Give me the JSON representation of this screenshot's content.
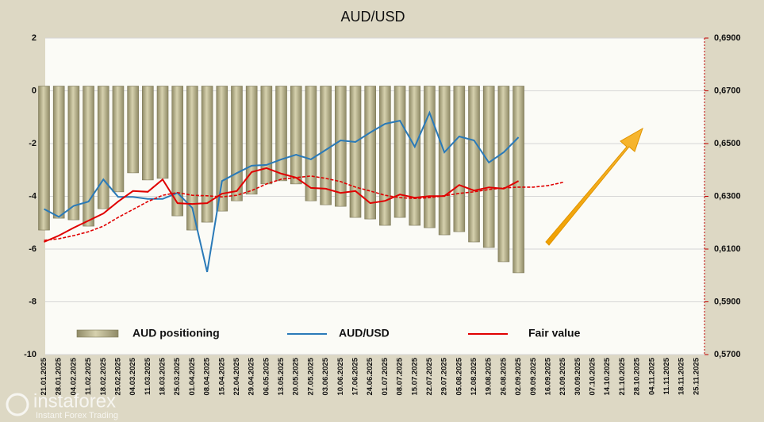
{
  "chart_data": {
    "type": "bar_line",
    "title": "AUD/USD",
    "categories": [
      "21.01.2025",
      "28.01.2025",
      "04.02.2025",
      "11.02.2025",
      "18.02.2025",
      "25.02.2025",
      "04.03.2025",
      "11.03.2025",
      "18.03.2025",
      "25.03.2025",
      "01.04.2025",
      "08.04.2025",
      "15.04.2025",
      "22.04.2025",
      "29.04.2025",
      "06.05.2025",
      "13.05.2025",
      "20.05.2025",
      "27.05.2025",
      "03.06.2025",
      "10.06.2025",
      "17.06.2025",
      "24.06.2025",
      "01.07.2025",
      "08.07.2025",
      "15.07.2025",
      "22.07.2025",
      "29.07.2025",
      "05.08.2025",
      "12.08.2025",
      "19.08.2025",
      "26.08.2025",
      "02.09.2025",
      "09.09.2025",
      "16.09.2025",
      "23.09.2025",
      "30.09.2025",
      "07.10.2025",
      "14.10.2025",
      "21.10.2025",
      "28.10.2025",
      "04.11.2025",
      "11.11.2025",
      "18.11.2025",
      "25.11.2025"
    ],
    "series": [
      {
        "name": "AUD positioning",
        "kind": "bar",
        "color": "#b5af88",
        "axis": "y",
        "values": [
          -5.28,
          -4.83,
          -4.89,
          -5.13,
          -4.47,
          -3.83,
          -3.11,
          -3.38,
          -3.32,
          -4.74,
          -5.28,
          -4.98,
          -4.56,
          -4.17,
          -3.92,
          -3.53,
          -3.41,
          -3.53,
          -4.17,
          -4.32,
          -4.38,
          -4.8,
          -4.86,
          -5.1,
          -4.8,
          -5.1,
          -5.19,
          -5.46,
          -5.34,
          -5.73,
          -5.94,
          -6.48,
          -6.9,
          null,
          null,
          null,
          null,
          null,
          null,
          null,
          null,
          null,
          null,
          null,
          null
        ]
      },
      {
        "name": "AUD/USD",
        "kind": "line",
        "color": "#2a7ab8",
        "axis": "y2",
        "values": [
          0.6252,
          0.6222,
          0.6264,
          0.628,
          0.6364,
          0.6298,
          0.6298,
          0.629,
          0.629,
          0.6313,
          0.6256,
          0.6013,
          0.6358,
          0.6388,
          0.6416,
          0.6419,
          0.644,
          0.6458,
          0.644,
          0.6476,
          0.6512,
          0.6506,
          0.6542,
          0.6575,
          0.6587,
          0.6488,
          0.6617,
          0.6467,
          0.6527,
          0.6512,
          0.6428,
          0.6467,
          0.6524,
          null,
          null,
          null,
          null,
          null,
          null,
          null,
          null,
          null,
          null,
          null,
          null
        ]
      },
      {
        "name": "Fair value",
        "kind": "line",
        "color": "#e00000",
        "axis": "y2",
        "values": [
          0.6127,
          0.6151,
          0.6181,
          0.6208,
          0.6235,
          0.628,
          0.632,
          0.6317,
          0.6364,
          0.6274,
          0.6271,
          0.6274,
          0.631,
          0.632,
          0.6392,
          0.6407,
          0.6386,
          0.6371,
          0.6332,
          0.6329,
          0.6313,
          0.632,
          0.6274,
          0.6283,
          0.6307,
          0.6295,
          0.6301,
          0.6301,
          0.6343,
          0.6322,
          0.6334,
          0.6329,
          0.6358,
          null,
          null,
          null,
          null,
          null,
          null,
          null,
          null,
          null,
          null,
          null,
          null
        ]
      },
      {
        "kind": "line",
        "dashed": true,
        "color": "#e00000",
        "axis": "y2",
        "values": [
          0.6133,
          0.6139,
          0.6151,
          0.6166,
          0.6187,
          0.622,
          0.625,
          0.628,
          0.6304,
          0.6314,
          0.6304,
          0.6302,
          0.6298,
          0.6304,
          0.6322,
          0.6347,
          0.6365,
          0.6371,
          0.6377,
          0.6368,
          0.6356,
          0.6335,
          0.632,
          0.6304,
          0.6295,
          0.6292,
          0.6295,
          0.6302,
          0.6311,
          0.6317,
          0.6326,
          0.6332,
          0.6335,
          0.6335,
          0.6341,
          0.6353,
          null,
          null,
          null,
          null,
          null,
          null,
          null,
          null,
          null
        ]
      }
    ],
    "ylim": [
      -10,
      2
    ],
    "yticks": [
      -10,
      -8,
      -6,
      -4,
      -2,
      0,
      2
    ],
    "y2lim": [
      0.57,
      0.69
    ],
    "y2ticks": [
      {
        "value": 0.57,
        "label": "0,5700"
      },
      {
        "value": 0.59,
        "label": "0,5900"
      },
      {
        "value": 0.61,
        "label": "0,6100"
      },
      {
        "value": 0.63,
        "label": "0,6300"
      },
      {
        "value": 0.65,
        "label": "0,6500"
      },
      {
        "value": 0.67,
        "label": "0,6700"
      },
      {
        "value": 0.69,
        "label": "0,6900"
      }
    ],
    "grid": true,
    "watermark": {
      "brand": "instaforex",
      "tagline": "Instant Forex Trading"
    }
  }
}
